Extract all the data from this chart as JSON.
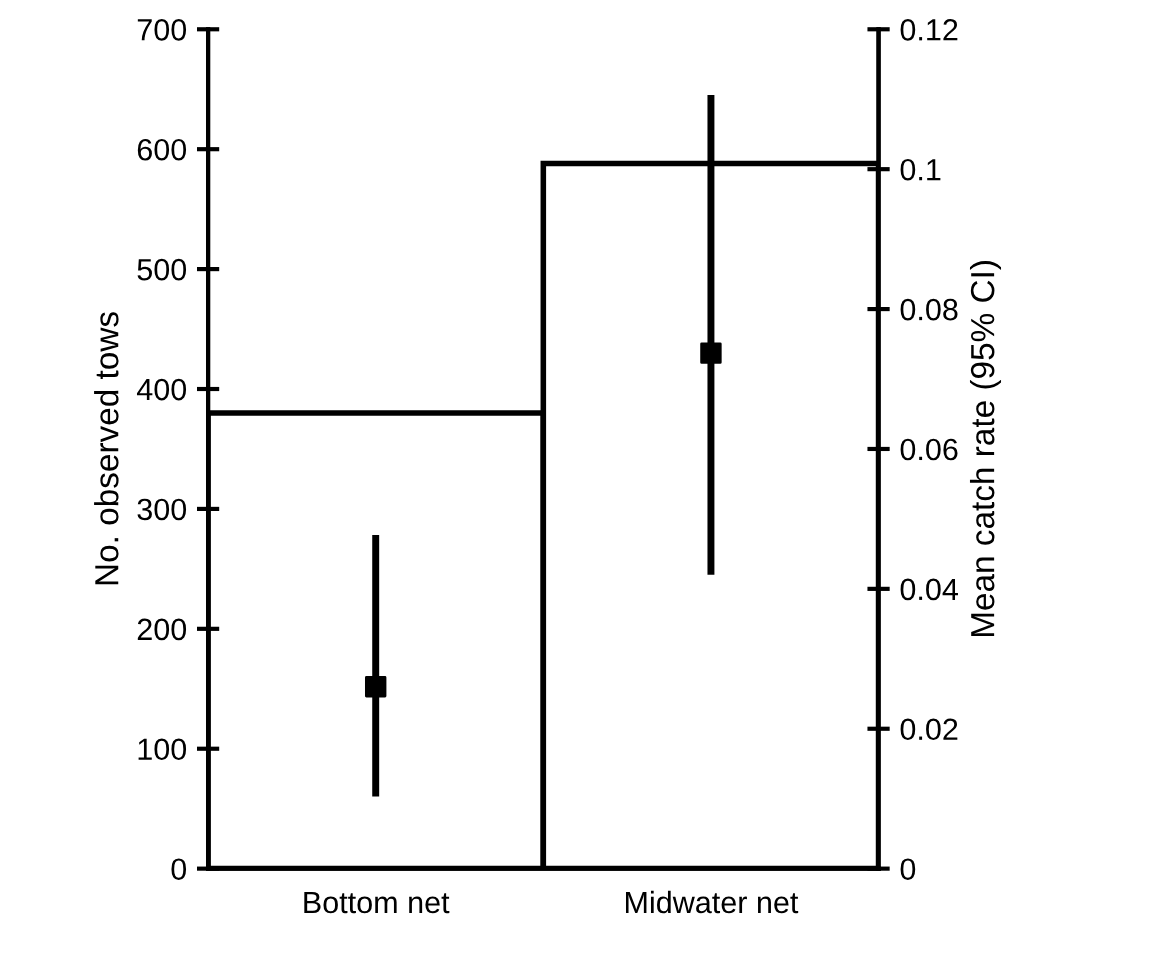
{
  "chart_data": {
    "type": "bar",
    "categories": [
      "Bottom net",
      "Midwater net"
    ],
    "ylabel": "No. observed tows",
    "y2label": "Mean catch rate (95% CI)",
    "ylim": [
      0,
      700
    ],
    "yticks": [
      0,
      100,
      200,
      300,
      400,
      500,
      600,
      700
    ],
    "y2lim": [
      0,
      0.12
    ],
    "y2ticks": [
      0,
      0.02,
      0.04,
      0.06,
      0.08,
      0.1,
      0.12
    ],
    "grid": false,
    "legend": false,
    "marker": "square",
    "series": [
      {
        "type": "bar",
        "color": "#ffffff",
        "values": [
          380,
          588
        ]
      },
      {
        "type": "scatter",
        "axis": "y2",
        "color": "#000000",
        "values": [
          0.026,
          0.0737
        ],
        "errors": [
          [
            0.0103,
            0.0477
          ],
          [
            0.042,
            0.1106
          ]
        ]
      }
    ]
  }
}
